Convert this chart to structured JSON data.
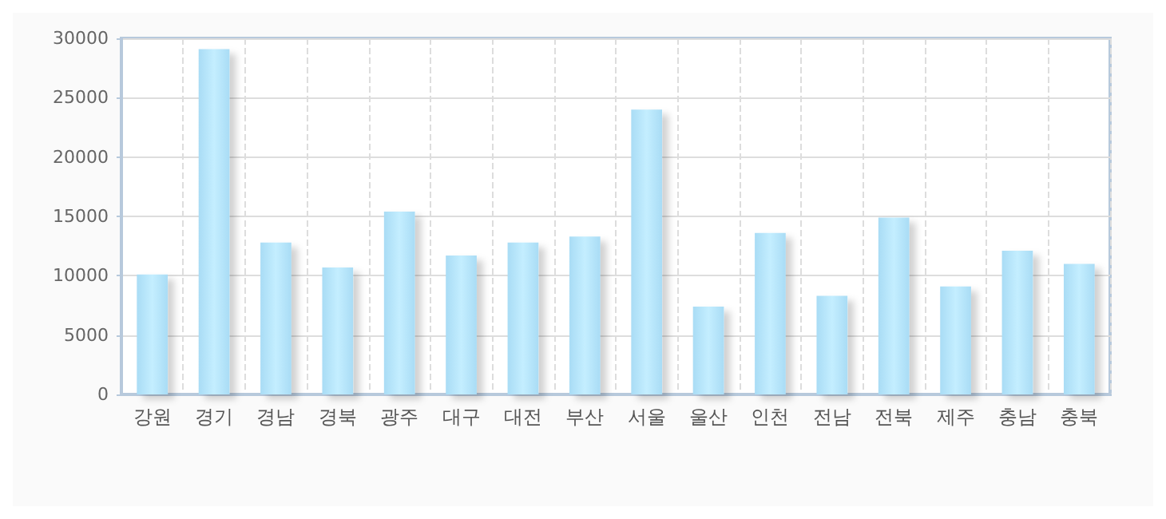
{
  "chart_data": {
    "type": "bar",
    "categories": [
      "강원",
      "경기",
      "경남",
      "경북",
      "광주",
      "대구",
      "대전",
      "부산",
      "서울",
      "울산",
      "인천",
      "전남",
      "전북",
      "제주",
      "충남",
      "충북"
    ],
    "series": [
      {
        "color": "#a9dcf5",
        "values": [
          10100,
          29100,
          12800,
          10700,
          15400,
          11700,
          12800,
          13300,
          24000,
          7400,
          13600,
          8300,
          14900,
          9100,
          12100,
          11000
        ]
      }
    ],
    "ylim": [
      0,
      30000
    ],
    "yticks": [
      0,
      5000,
      10000,
      15000,
      20000,
      25000,
      30000
    ],
    "grid": true
  }
}
